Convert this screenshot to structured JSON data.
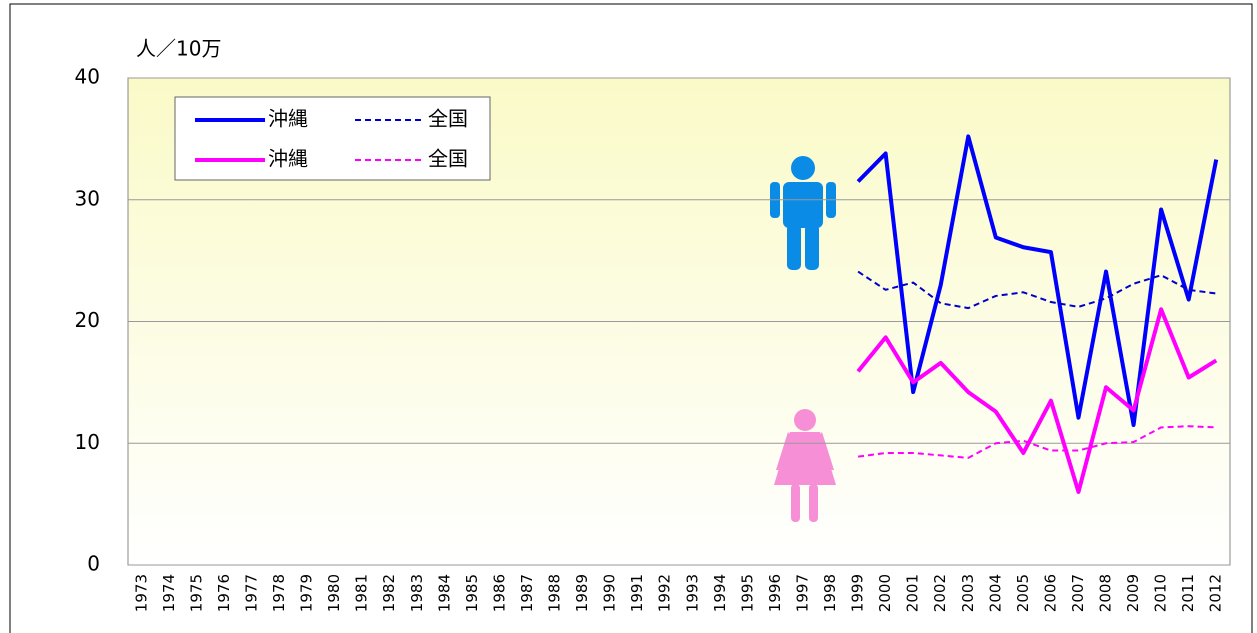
{
  "chart_data": {
    "type": "line",
    "ylabel": "人／10万",
    "categories": [
      "1973",
      "1974",
      "1975",
      "1976",
      "1977",
      "1978",
      "1979",
      "1980",
      "1981",
      "1982",
      "1983",
      "1984",
      "1985",
      "1986",
      "1987",
      "1988",
      "1989",
      "1990",
      "1991",
      "1992",
      "1993",
      "1994",
      "1995",
      "1996",
      "1997",
      "1998",
      "1999",
      "2000",
      "2001",
      "2002",
      "2003",
      "2004",
      "2005",
      "2006",
      "2007",
      "2008",
      "2009",
      "2010",
      "2011",
      "2012"
    ],
    "series": [
      {
        "name": "沖縄",
        "color": "#0000ff",
        "dash": false,
        "values": [
          null,
          null,
          null,
          null,
          null,
          null,
          null,
          null,
          null,
          null,
          null,
          null,
          null,
          null,
          null,
          null,
          null,
          null,
          null,
          null,
          null,
          null,
          null,
          null,
          null,
          null,
          31.5,
          33.8,
          14.2,
          23.0,
          35.2,
          26.9,
          26.1,
          25.7,
          12.1,
          24.1,
          11.5,
          29.2,
          21.8,
          33.3
        ]
      },
      {
        "name": "全国",
        "color": "#0000cc",
        "dash": true,
        "values": [
          null,
          null,
          null,
          null,
          null,
          null,
          null,
          null,
          null,
          null,
          null,
          null,
          null,
          null,
          null,
          null,
          null,
          null,
          null,
          null,
          null,
          null,
          null,
          null,
          null,
          null,
          24.1,
          22.6,
          23.2,
          21.5,
          21.1,
          22.1,
          22.4,
          21.6,
          21.2,
          21.9,
          23.1,
          23.8,
          22.6,
          22.3
        ]
      },
      {
        "name": "沖縄",
        "color": "#ff00ff",
        "dash": false,
        "values": [
          null,
          null,
          null,
          null,
          null,
          null,
          null,
          null,
          null,
          null,
          null,
          null,
          null,
          null,
          null,
          null,
          null,
          null,
          null,
          null,
          null,
          null,
          null,
          null,
          null,
          null,
          15.9,
          18.7,
          15.0,
          16.6,
          14.2,
          12.6,
          9.2,
          13.5,
          6.0,
          14.6,
          12.7,
          21.0,
          15.4,
          16.8
        ]
      },
      {
        "name": "全国",
        "color": "#ff00ff",
        "dash": true,
        "values": [
          null,
          null,
          null,
          null,
          null,
          null,
          null,
          null,
          null,
          null,
          null,
          null,
          null,
          null,
          null,
          null,
          null,
          null,
          null,
          null,
          null,
          null,
          null,
          null,
          null,
          null,
          8.9,
          9.2,
          9.2,
          9.0,
          8.8,
          10.0,
          10.2,
          9.4,
          9.4,
          10.0,
          10.1,
          11.3,
          11.4,
          11.3
        ]
      }
    ],
    "ylim": [
      0,
      40
    ],
    "yticks": [
      0,
      10,
      20,
      30,
      40
    ],
    "grid": true
  }
}
